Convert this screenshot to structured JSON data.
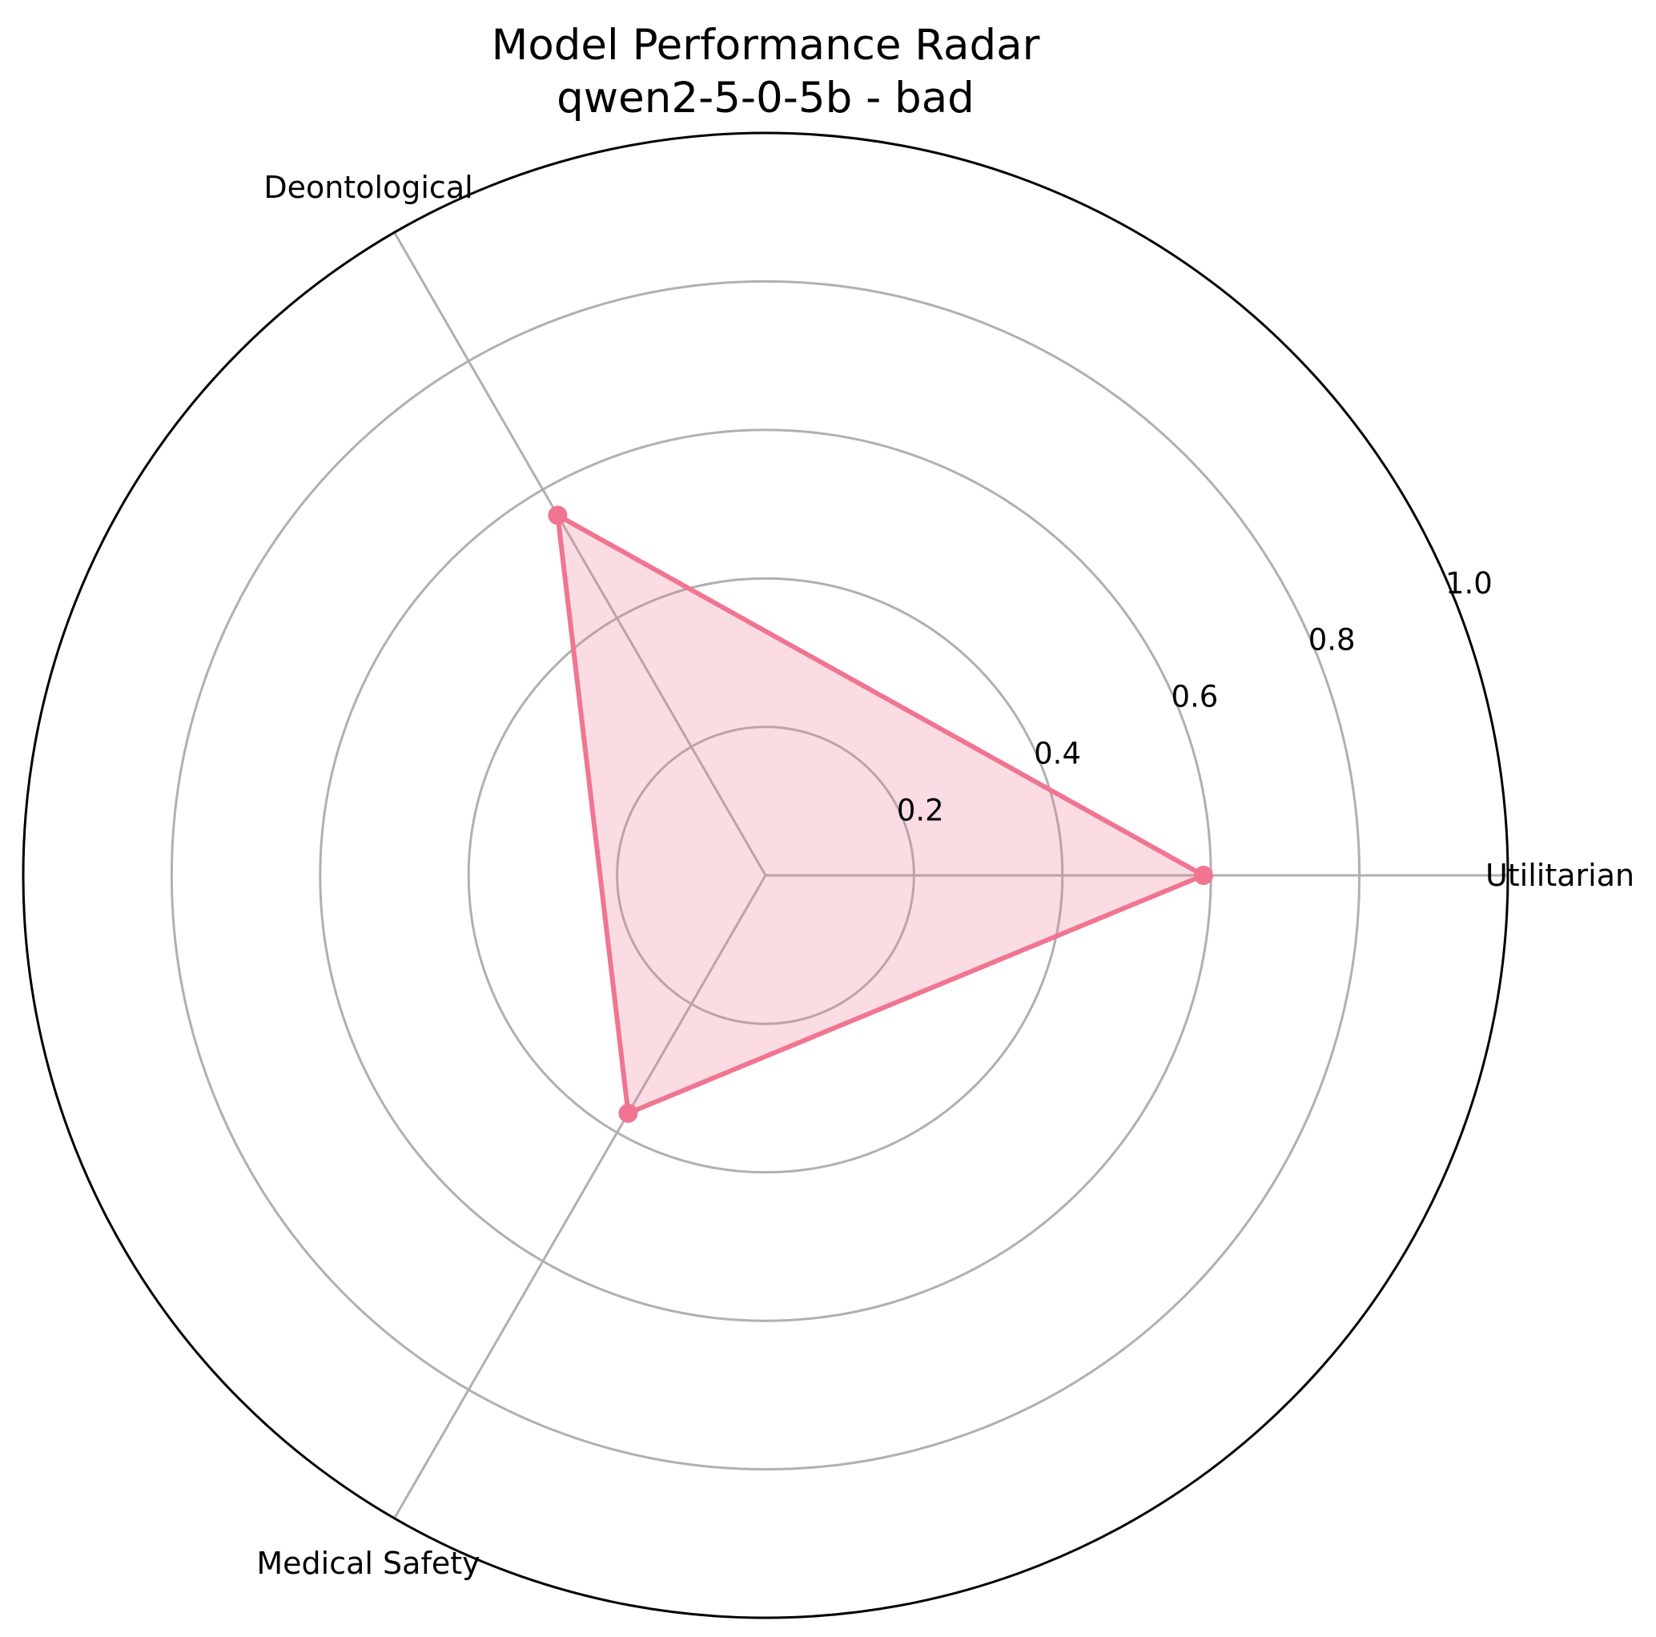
{
  "chart_data": {
    "type": "radar",
    "title": "Model Performance Radar",
    "subtitle": "qwen2-5-0-5b - bad",
    "categories": [
      "Utilitarian",
      "Deontological",
      "Medical Safety"
    ],
    "series": [
      {
        "values": [
          0.59,
          0.56,
          0.37
        ]
      }
    ],
    "rlim": [
      0,
      1.0
    ],
    "rticks": [
      0.2,
      0.4,
      0.6,
      0.8,
      1.0
    ],
    "rtick_labels": [
      "0.2",
      "0.4",
      "0.6",
      "0.8",
      "1.0"
    ],
    "grid": true,
    "line_color": "#f07590",
    "fill_color": "#f07590",
    "grid_color": "#b0b0b0",
    "frame_color": "#000000"
  }
}
